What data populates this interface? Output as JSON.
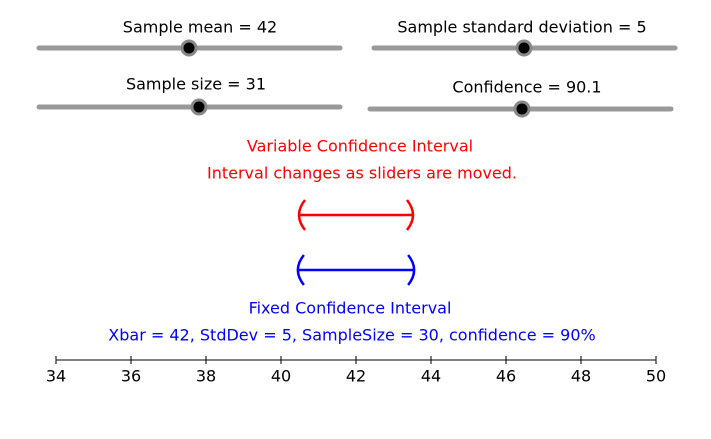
{
  "sliders": [
    {
      "label": "Sample mean = 42"
    },
    {
      "label": "Sample standard deviation = 5"
    },
    {
      "label": "Sample size = 31"
    },
    {
      "label": "Confidence = 90.1"
    }
  ],
  "variable_title": "Variable Confidence Interval",
  "variable_note": "Interval changes as sliders are moved.",
  "fixed_title": "Fixed Confidence Interval",
  "fixed_note": "Xbar = 42, StdDev = 5, SampleSize = 30, confidence = 90%",
  "intervals": [
    {
      "low": 40.48,
      "high": 43.52,
      "color": "#ff0000"
    },
    {
      "low": 40.45,
      "high": 43.55,
      "color": "#0000ff"
    }
  ],
  "number_line": {
    "xlim": [
      34,
      50
    ],
    "ticks": [
      34,
      36,
      38,
      40,
      42,
      44,
      46,
      48,
      50
    ]
  }
}
